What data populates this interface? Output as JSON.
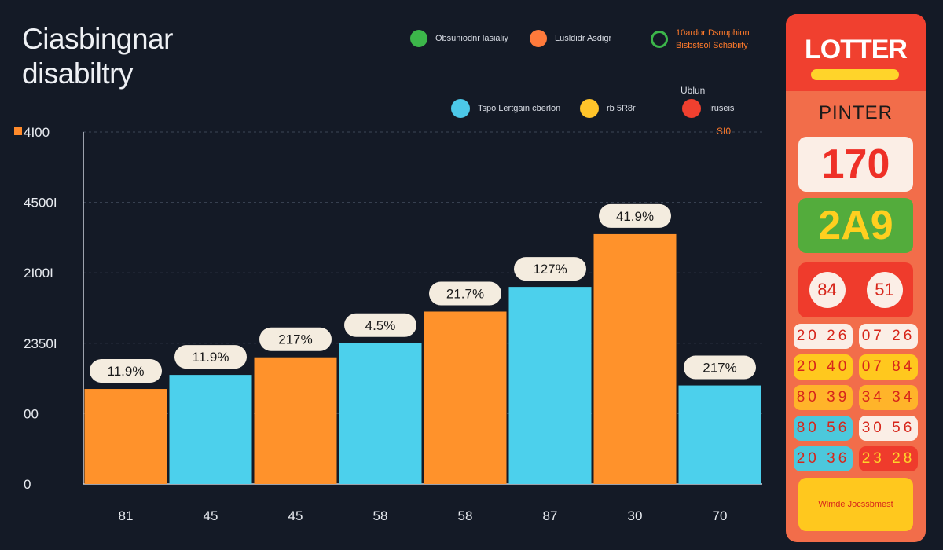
{
  "title": {
    "line1": "Ciasbingnar",
    "line2": "disabiltry"
  },
  "legend": {
    "row1": [
      {
        "label": "Obsuniodnr lasialiy",
        "color": "#3cb64a",
        "style": "dot"
      },
      {
        "label": "Lusldidr Asdigr",
        "color": "#ff7a3b",
        "style": "dot"
      },
      {
        "label_line1": "10ardor Dsnuphion",
        "label_line2": "Bisbstsol Schabiity",
        "color": "#3cb64a",
        "style": "ring"
      }
    ],
    "note": "Ublun",
    "row2": [
      {
        "label": "Tspo Lertgain cberlon",
        "color": "#4cc8e8"
      },
      {
        "label": "rb 5R8r",
        "color": "#ffc42a"
      },
      {
        "label": "Iruseis",
        "color": "#f0402f"
      }
    ],
    "right_marker": "SI0"
  },
  "chart_data": {
    "type": "bar",
    "title": "Ciasbingnar disabiltry",
    "y_tick_labels": [
      "0",
      "00",
      "2350I",
      "2I00I",
      "4500I",
      "4I00"
    ],
    "y_ticks": [
      0,
      1,
      2,
      3,
      4,
      5
    ],
    "ylim": [
      0,
      5
    ],
    "gridlines": true,
    "categories": [
      "81",
      "45",
      "45",
      "58",
      "58",
      "87",
      "30",
      "70"
    ],
    "values": [
      1.35,
      1.55,
      1.8,
      2.0,
      2.45,
      2.8,
      3.55,
      1.4
    ],
    "bar_colors": [
      "#ff922b",
      "#4cd0ec",
      "#ff922b",
      "#4cd0ec",
      "#ff922b",
      "#4cd0ec",
      "#ff922b",
      "#4cd0ec"
    ],
    "data_labels": [
      "11.9%",
      "11.9%",
      "217%",
      "4.5%",
      "21.7%",
      "127%",
      "41.9%",
      "217%"
    ]
  },
  "lottery": {
    "title": "LOTTER",
    "subtitle": "PINTER",
    "big_number_1": "170",
    "big_number_2": "2A9",
    "pair": [
      "84",
      "51"
    ],
    "grid": [
      {
        "text": "20 26",
        "style": "c-cream"
      },
      {
        "text": "07 26",
        "style": "c-cream"
      },
      {
        "text": "20 40",
        "style": "c-yellow"
      },
      {
        "text": "07 84",
        "style": "c-yellow"
      },
      {
        "text": "80 39",
        "style": "c-amber"
      },
      {
        "text": "34 34",
        "style": "c-amber"
      },
      {
        "text": "80 56",
        "style": "c-cyan"
      },
      {
        "text": "30 56",
        "style": "c-cream"
      },
      {
        "text": "20 36",
        "style": "c-cyan"
      },
      {
        "text": "23 28",
        "style": "c-red"
      }
    ],
    "footer": "Wlmde Jocssbmest"
  }
}
